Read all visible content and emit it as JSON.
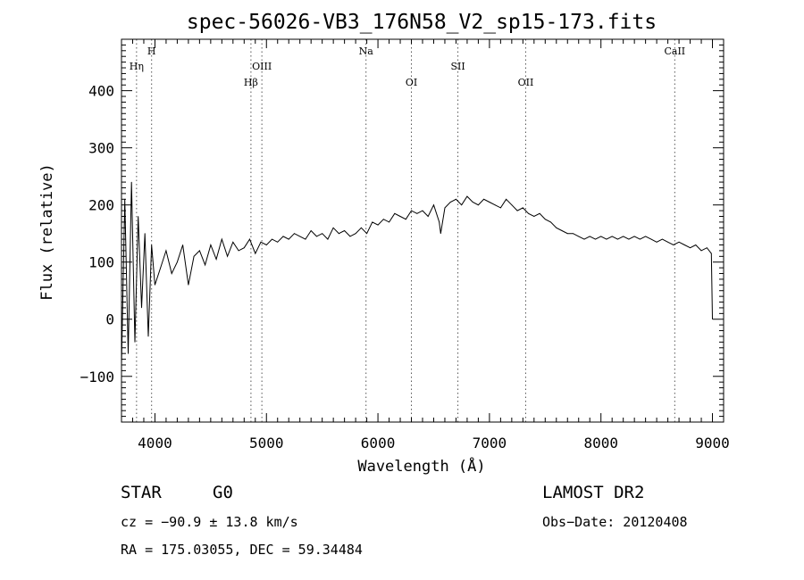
{
  "chart_data": {
    "type": "line",
    "title": "spec-56026-VB3_176N58_V2_sp15-173.fits",
    "xlabel": "Wavelength (Å)",
    "ylabel": "Flux (relative)",
    "xlim": [
      3700,
      9100
    ],
    "ylim": [
      -180,
      490
    ],
    "x_ticks": [
      4000,
      5000,
      6000,
      7000,
      8000,
      9000
    ],
    "x_tick_labels": [
      "4000",
      "5000",
      "6000",
      "7000",
      "8000",
      "9000"
    ],
    "y_ticks": [
      -100,
      0,
      100,
      200,
      300,
      400
    ],
    "y_tick_labels": [
      "−100",
      "0",
      "100",
      "200",
      "300",
      "400"
    ],
    "grid": false,
    "series": [
      {
        "x": [
          3700,
          3730,
          3760,
          3790,
          3820,
          3850,
          3880,
          3910,
          3940,
          3970,
          4000,
          4050,
          4100,
          4150,
          4200,
          4250,
          4300,
          4350,
          4400,
          4450,
          4500,
          4550,
          4600,
          4650,
          4700,
          4750,
          4800,
          4850,
          4900,
          4950,
          5000,
          5050,
          5100,
          5150,
          5200,
          5250,
          5300,
          5350,
          5400,
          5450,
          5500,
          5550,
          5600,
          5650,
          5700,
          5750,
          5800,
          5850,
          5900,
          5950,
          6000,
          6050,
          6100,
          6150,
          6200,
          6250,
          6300,
          6350,
          6400,
          6450,
          6500,
          6550,
          6563,
          6600,
          6650,
          6700,
          6750,
          6800,
          6850,
          6900,
          6950,
          7000,
          7050,
          7100,
          7150,
          7200,
          7250,
          7300,
          7350,
          7400,
          7450,
          7500,
          7550,
          7600,
          7650,
          7700,
          7750,
          7800,
          7850,
          7900,
          7950,
          8000,
          8050,
          8100,
          8150,
          8200,
          8250,
          8300,
          8350,
          8400,
          8450,
          8500,
          8550,
          8600,
          8650,
          8700,
          8750,
          8800,
          8850,
          8900,
          8950,
          8990,
          9000
        ],
        "y": [
          -80,
          210,
          -60,
          240,
          -40,
          180,
          20,
          150,
          -30,
          130,
          60,
          90,
          120,
          80,
          100,
          130,
          60,
          110,
          120,
          95,
          130,
          105,
          140,
          110,
          135,
          120,
          125,
          140,
          115,
          135,
          130,
          140,
          135,
          145,
          140,
          150,
          145,
          140,
          155,
          145,
          150,
          140,
          160,
          150,
          155,
          145,
          150,
          160,
          150,
          170,
          165,
          175,
          170,
          185,
          180,
          175,
          190,
          185,
          190,
          180,
          200,
          170,
          150,
          195,
          205,
          210,
          200,
          215,
          205,
          200,
          210,
          205,
          200,
          195,
          210,
          200,
          190,
          195,
          185,
          180,
          185,
          175,
          170,
          160,
          155,
          150,
          150,
          145,
          140,
          145,
          140,
          145,
          140,
          145,
          140,
          145,
          140,
          145,
          140,
          145,
          140,
          135,
          140,
          135,
          130,
          135,
          130,
          125,
          130,
          120,
          125,
          115,
          0
        ]
      }
    ],
    "line_markers": [
      {
        "label": "Hη",
        "x": 3835,
        "row": 1
      },
      {
        "label": "H",
        "x": 3970,
        "row": 0
      },
      {
        "label": "Hβ",
        "x": 4861,
        "row": 2
      },
      {
        "label": "OIII",
        "x": 4959,
        "row": 1
      },
      {
        "label": "Na",
        "x": 5893,
        "row": 0
      },
      {
        "label": "OI",
        "x": 6300,
        "row": 2
      },
      {
        "label": "SII",
        "x": 6717,
        "row": 1
      },
      {
        "label": "OII",
        "x": 7325,
        "row": 2
      },
      {
        "label": "CaII",
        "x": 8662,
        "row": 0
      }
    ]
  },
  "info": {
    "class": "STAR",
    "subclass": "G0",
    "survey": "LAMOST DR2",
    "cz": "cz = −90.9 ± 13.8 km/s",
    "obs_date": "Obs−Date: 20120408",
    "coords": "RA = 175.03055, DEC =  59.34484"
  }
}
